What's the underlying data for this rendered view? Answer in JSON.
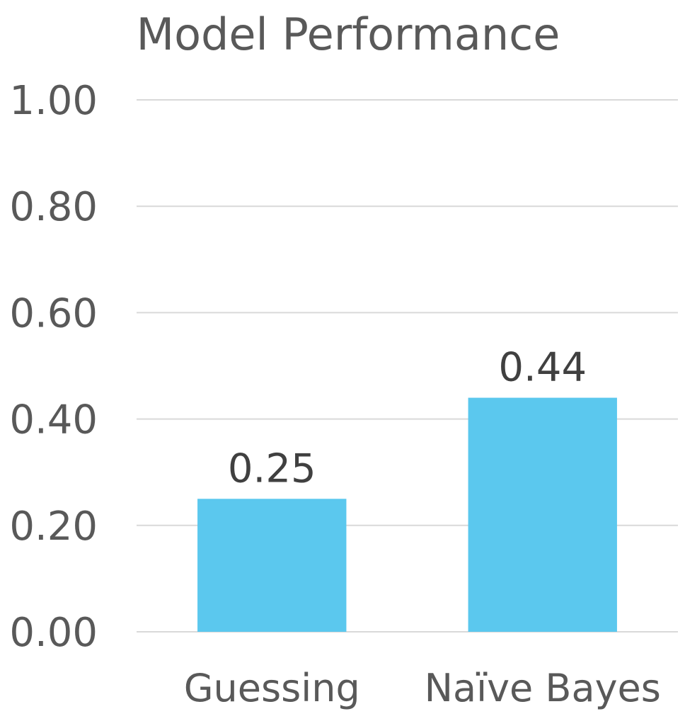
{
  "chart_data": {
    "type": "bar",
    "title": "Model Performance",
    "categories": [
      "Guessing",
      "Naïve Bayes"
    ],
    "values": [
      0.25,
      0.44
    ],
    "data_labels": [
      "0.25",
      "0.44"
    ],
    "ylim": [
      0,
      1
    ],
    "yticks": [
      "0.00",
      "0.20",
      "0.40",
      "0.60",
      "0.80",
      "1.00"
    ],
    "ytick_values": [
      0,
      0.2,
      0.4,
      0.6,
      0.8,
      1.0
    ],
    "xlabel": "",
    "ylabel": "",
    "grid": true,
    "legend": "none",
    "bar_color": "#5bc8ee"
  }
}
